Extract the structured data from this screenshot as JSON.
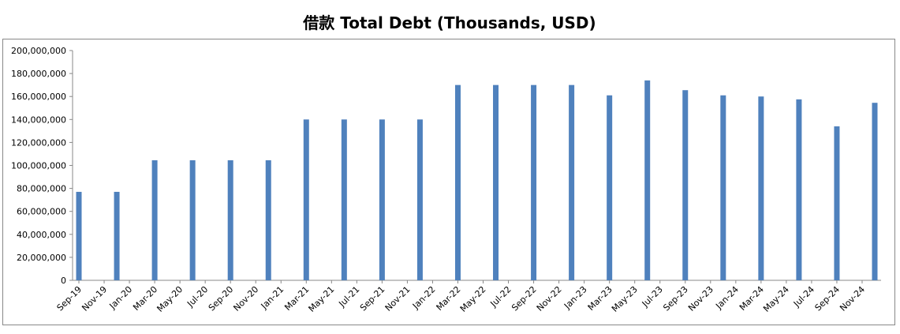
{
  "chart_data": {
    "type": "bar",
    "title": "借款 Total Debt (Thousands, USD)",
    "categories": [
      "Sep-19",
      null,
      "Nov-19",
      null,
      "Jan-20",
      null,
      "Mar-20",
      null,
      "May-20",
      null,
      "Jul-20",
      null,
      "Sep-20",
      null,
      "Nov-20",
      null,
      "Jan-21",
      null,
      "Mar-21",
      null,
      "May-21",
      null,
      "Jul-21",
      null,
      "Sep-21",
      null,
      "Nov-21",
      null,
      "Jan-22",
      null,
      "Mar-22",
      null,
      "May-22",
      null,
      "Jul-22",
      null,
      "Sep-22",
      null,
      "Nov-22",
      null,
      "Jan-23",
      null,
      "Mar-23",
      null,
      "May-23",
      null,
      "Jul-23",
      null,
      "Sep-23",
      null,
      "Nov-23",
      null,
      "Jan-24",
      null,
      "Mar-24",
      null,
      "May-24",
      null,
      "Jul-24",
      null,
      "Sep-24",
      null,
      "Nov-24",
      null
    ],
    "values": [
      77000000,
      null,
      null,
      77000000,
      null,
      null,
      104500000,
      null,
      null,
      104500000,
      null,
      null,
      104500000,
      null,
      null,
      104500000,
      null,
      null,
      140000000,
      null,
      null,
      140000000,
      null,
      null,
      140000000,
      null,
      null,
      140000000,
      null,
      null,
      170000000,
      null,
      null,
      170000000,
      null,
      null,
      170000000,
      null,
      null,
      170000000,
      null,
      null,
      161000000,
      null,
      null,
      174000000,
      null,
      null,
      165500000,
      null,
      null,
      161000000,
      null,
      null,
      160000000,
      null,
      null,
      157500000,
      null,
      null,
      134000000,
      null,
      null,
      154500000
    ],
    "color": "#4f81bd",
    "ylim": [
      0,
      200000000
    ],
    "yticks": [
      0,
      {
        "value": 20000000,
        "label": "20,000,000"
      },
      {
        "value": 40000000,
        "label": "40,000,000"
      },
      {
        "value": 60000000,
        "label": "60,000,000"
      },
      {
        "value": 80000000,
        "label": "80,000,000"
      },
      {
        "value": 100000000,
        "label": "100,000,000"
      },
      {
        "value": 120000000,
        "label": "120,000,000"
      },
      {
        "value": 140000000,
        "label": "140,000,000"
      },
      {
        "value": 160000000,
        "label": "160,000,000"
      },
      {
        "value": 180000000,
        "label": "180,000,000"
      },
      {
        "value": 200000000,
        "label": "200,000,000"
      }
    ]
  }
}
